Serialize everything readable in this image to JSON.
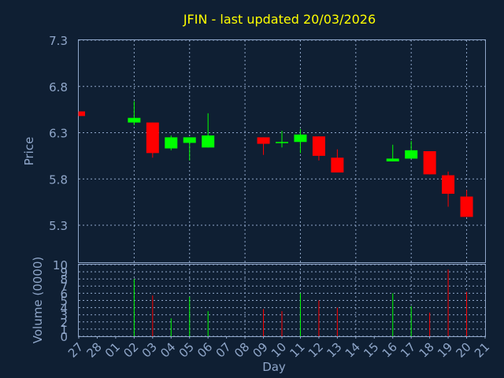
{
  "chart_data": [
    {
      "type": "candlestick",
      "title": "JFIN - last updated 20/03/2026",
      "ylabel": "Price",
      "ylim": [
        4.9,
        7.3
      ],
      "yticks": [
        "7.3",
        "6.8",
        "6.3",
        "5.8",
        "5.3"
      ],
      "x": [
        "27",
        "28",
        "01",
        "02",
        "03",
        "04",
        "05",
        "06",
        "07",
        "08",
        "09",
        "10",
        "11",
        "12",
        "13",
        "14",
        "15",
        "16",
        "17",
        "18",
        "19",
        "20",
        "21"
      ],
      "candles": [
        {
          "x": "27",
          "open": 6.53,
          "close": 6.48,
          "high": 6.53,
          "low": 6.48
        },
        {
          "x": "02",
          "open": 6.41,
          "close": 6.46,
          "high": 6.64,
          "low": 6.38
        },
        {
          "x": "03",
          "open": 6.41,
          "close": 6.08,
          "high": 6.41,
          "low": 6.03
        },
        {
          "x": "04",
          "open": 6.13,
          "close": 6.25,
          "high": 6.27,
          "low": 6.11
        },
        {
          "x": "05",
          "open": 6.19,
          "close": 6.25,
          "high": 6.25,
          "low": 6.0
        },
        {
          "x": "06",
          "open": 6.14,
          "close": 6.27,
          "high": 6.51,
          "low": 6.14
        },
        {
          "x": "09",
          "open": 6.25,
          "close": 6.18,
          "high": 6.25,
          "low": 6.06
        },
        {
          "x": "10",
          "open": 6.2,
          "close": 6.2,
          "high": 6.32,
          "low": 6.14
        },
        {
          "x": "11",
          "open": 6.2,
          "close": 6.28,
          "high": 6.34,
          "low": 6.08
        },
        {
          "x": "12",
          "open": 6.26,
          "close": 6.05,
          "high": 6.26,
          "low": 6.0
        },
        {
          "x": "13",
          "open": 6.03,
          "close": 5.87,
          "high": 6.12,
          "low": 5.87
        },
        {
          "x": "16",
          "open": 5.99,
          "close": 6.02,
          "high": 6.17,
          "low": 5.99
        },
        {
          "x": "17",
          "open": 6.02,
          "close": 6.11,
          "high": 6.21,
          "low": 6.02
        },
        {
          "x": "18",
          "open": 6.1,
          "close": 5.85,
          "high": 6.1,
          "low": 5.85
        },
        {
          "x": "19",
          "open": 5.84,
          "close": 5.64,
          "high": 5.88,
          "low": 5.5
        },
        {
          "x": "20",
          "open": 5.61,
          "close": 5.39,
          "high": 5.68,
          "low": 5.39
        }
      ],
      "colors": {
        "up": "#00ff00",
        "down": "#ff0000",
        "background": "#0f1f33",
        "text": "#8fa6c9",
        "title": "#ffff00",
        "grid": "#8fa6c9"
      }
    },
    {
      "type": "bar",
      "ylabel": "Volume (0000)",
      "xlabel": "Day",
      "ylim": [
        0,
        10
      ],
      "yticks": [
        "10",
        "9",
        "8",
        "7",
        "6",
        "5",
        "4",
        "3",
        "2",
        "1",
        "0"
      ],
      "x": [
        "27",
        "28",
        "01",
        "02",
        "03",
        "04",
        "05",
        "06",
        "07",
        "08",
        "09",
        "10",
        "11",
        "12",
        "13",
        "14",
        "15",
        "16",
        "17",
        "18",
        "19",
        "20",
        "21"
      ],
      "bars": [
        {
          "x": "02",
          "value": 8.0,
          "dir": "up"
        },
        {
          "x": "03",
          "value": 5.7,
          "dir": "down"
        },
        {
          "x": "04",
          "value": 2.5,
          "dir": "up"
        },
        {
          "x": "05",
          "value": 5.5,
          "dir": "up"
        },
        {
          "x": "06",
          "value": 3.5,
          "dir": "up"
        },
        {
          "x": "09",
          "value": 3.8,
          "dir": "down"
        },
        {
          "x": "10",
          "value": 3.5,
          "dir": "down"
        },
        {
          "x": "11",
          "value": 6.0,
          "dir": "up"
        },
        {
          "x": "12",
          "value": 5.0,
          "dir": "down"
        },
        {
          "x": "13",
          "value": 4.0,
          "dir": "down"
        },
        {
          "x": "16",
          "value": 6.0,
          "dir": "up"
        },
        {
          "x": "17",
          "value": 4.2,
          "dir": "up"
        },
        {
          "x": "18",
          "value": 3.3,
          "dir": "down"
        },
        {
          "x": "19",
          "value": 9.3,
          "dir": "down"
        },
        {
          "x": "20",
          "value": 6.2,
          "dir": "down"
        }
      ]
    }
  ]
}
